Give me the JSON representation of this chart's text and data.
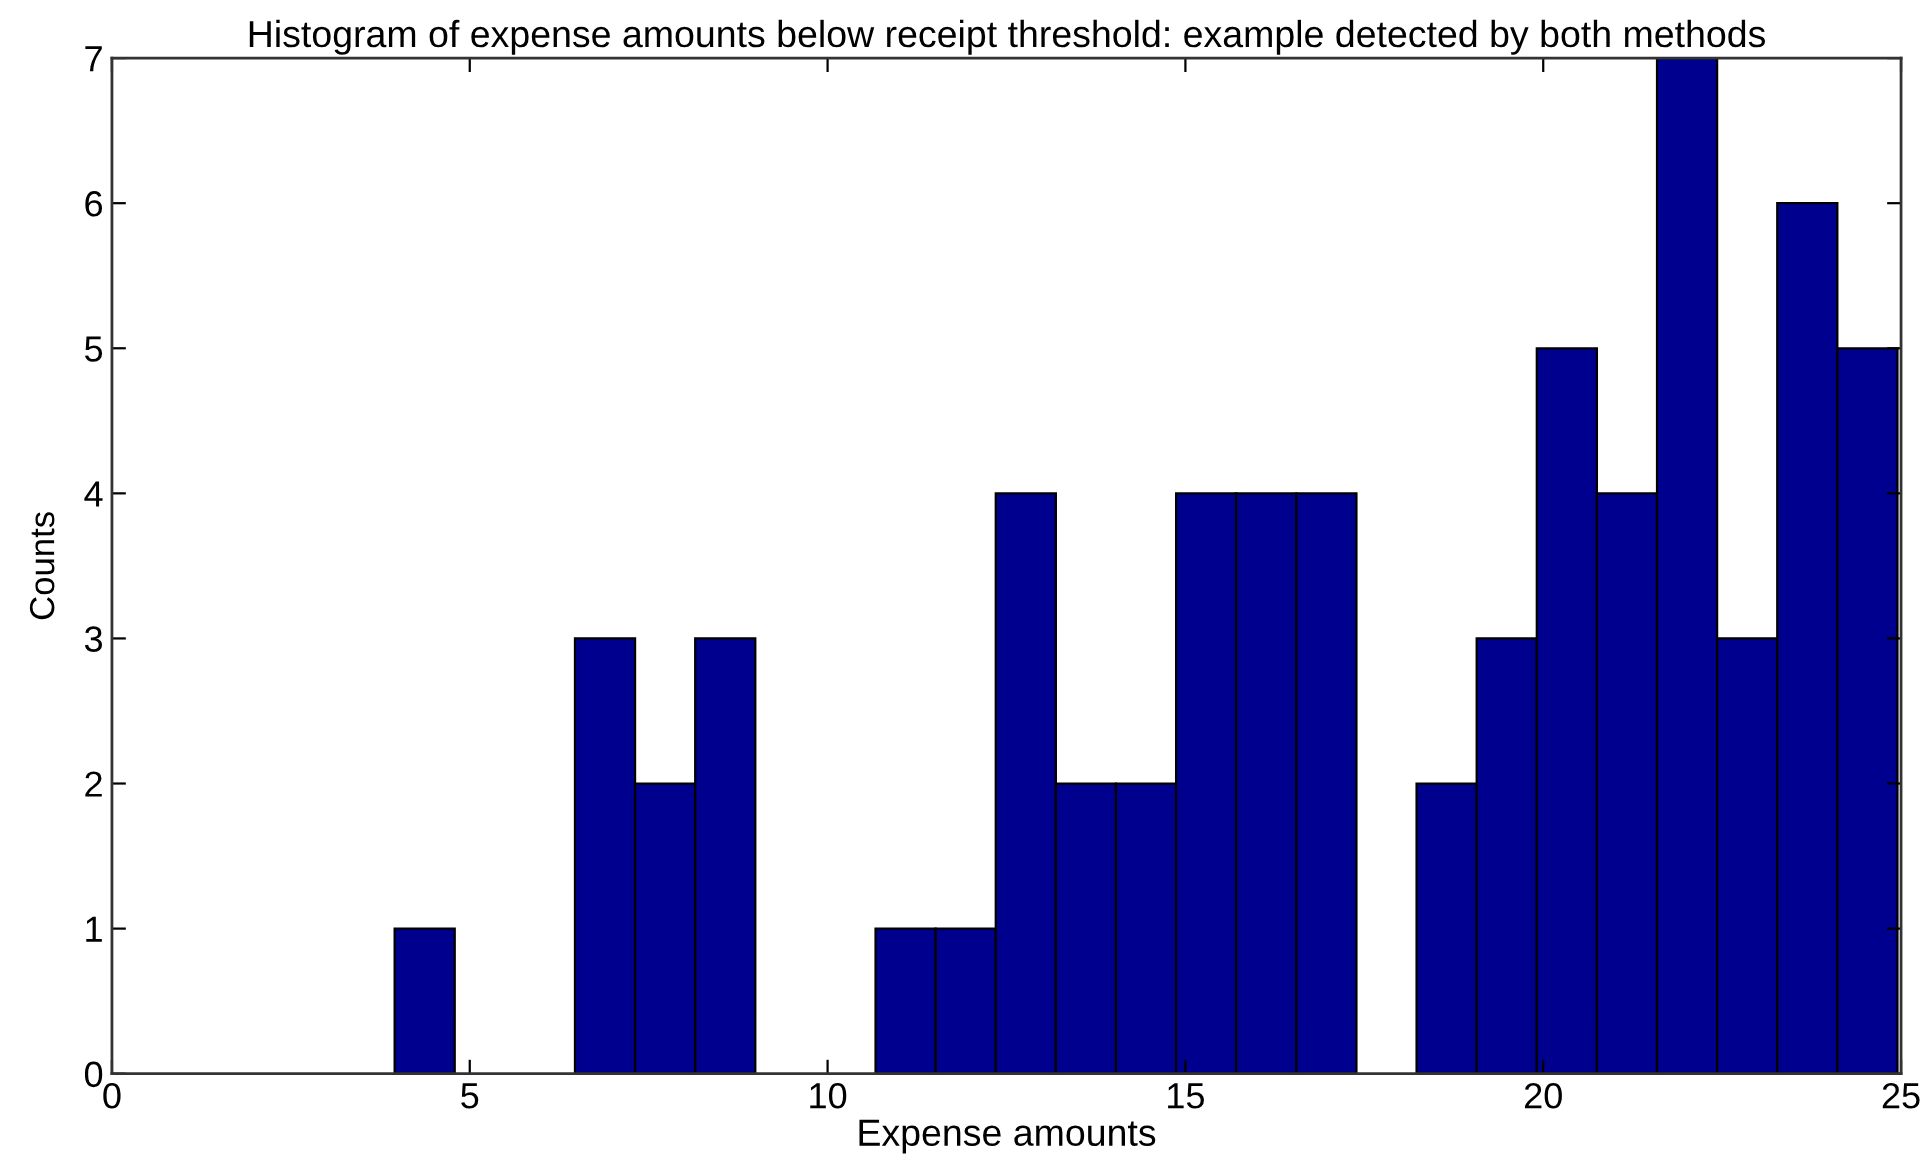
{
  "chart_data": {
    "type": "histogram",
    "title": "Histogram of expense amounts below receipt threshold: example detected by both methods",
    "xlabel": "Expense amounts",
    "ylabel": "Counts",
    "bins": [
      3.95,
      4.79,
      5.63,
      6.47,
      7.31,
      8.15,
      8.99,
      9.83,
      10.67,
      11.51,
      12.35,
      13.19,
      14.03,
      14.87,
      15.71,
      16.55,
      17.39,
      18.23,
      19.07,
      19.91,
      20.75,
      21.59,
      22.43,
      23.27,
      24.11,
      24.95
    ],
    "values": [
      1,
      0,
      0,
      3,
      2,
      3,
      0,
      0,
      1,
      1,
      4,
      2,
      2,
      4,
      4,
      4,
      0,
      2,
      3,
      5,
      4,
      7,
      3,
      6,
      5
    ],
    "color": "#00008f",
    "xlim": [
      0,
      25
    ],
    "xticks": [
      0,
      5,
      10,
      15,
      20,
      25
    ],
    "ylim": [
      0,
      7
    ],
    "yticks": [
      0,
      1,
      2,
      3,
      4,
      5,
      6,
      7
    ],
    "grid": false,
    "legend": false
  }
}
